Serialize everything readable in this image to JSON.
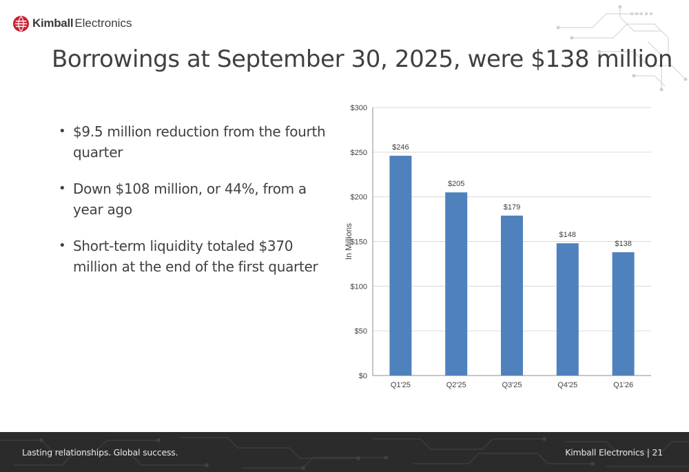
{
  "header": {
    "logo_brand": "Kimball",
    "logo_product": "Electronics",
    "title": "Borrowings at September 30, 2025, were $138 million"
  },
  "bullets": [
    {
      "text": "$9.5 million reduction from the fourth quarter"
    },
    {
      "text": "Down $108 million, or 44%, from a year ago"
    },
    {
      "text": "Short-term liquidity totaled $370 million at the end of the first quarter"
    }
  ],
  "chart_data": {
    "type": "bar",
    "title": "",
    "xlabel": "",
    "ylabel": "In Millions",
    "categories": [
      "Q1'25",
      "Q2'25",
      "Q3'25",
      "Q4'25",
      "Q1'26"
    ],
    "values": [
      246,
      205,
      179,
      148,
      138
    ],
    "data_labels": [
      "$246",
      "$205",
      "$179",
      "$148",
      "$138"
    ],
    "ylim": [
      0,
      300
    ],
    "yticks": [
      0,
      50,
      100,
      150,
      200,
      250,
      300
    ],
    "ytick_labels": [
      "$0",
      "$50",
      "$100",
      "$150",
      "$200",
      "$250",
      "$300"
    ],
    "grid": true,
    "legend": false,
    "bar_color": "#4f81bd"
  },
  "footer": {
    "tagline": "Lasting relationships. Global success.",
    "company": "Kimball Electronics",
    "separator": "|",
    "page_number": "21"
  },
  "colors": {
    "brand_red": "#c8202f",
    "title_text": "#404040",
    "footer_bg": "#2b2b2b"
  }
}
